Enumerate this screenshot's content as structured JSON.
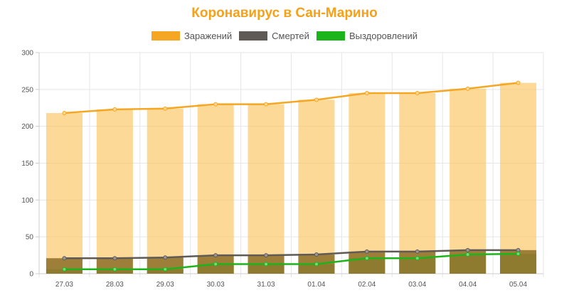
{
  "title": "Коронавирус в Сан-Марино",
  "legend": [
    {
      "label": "Заражений",
      "color": "#f5a623"
    },
    {
      "label": "Смертей",
      "color": "#5f5a55"
    },
    {
      "label": "Выздоровлений",
      "color": "#1bb51b"
    }
  ],
  "chart_data": {
    "type": "bar",
    "categories": [
      "27.03",
      "28.03",
      "29.03",
      "30.03",
      "31.03",
      "01.04",
      "02.04",
      "03.04",
      "04.04",
      "05.04"
    ],
    "series": [
      {
        "name": "Заражений",
        "values": [
          218,
          223,
          224,
          230,
          230,
          236,
          245,
          245,
          251,
          259
        ]
      },
      {
        "name": "Смертей",
        "values": [
          21,
          21,
          22,
          25,
          25,
          26,
          30,
          30,
          32,
          32
        ]
      },
      {
        "name": "Выздоровлений",
        "values": [
          6,
          6,
          6,
          13,
          13,
          13,
          21,
          21,
          26,
          27
        ]
      }
    ],
    "y_ticks": [
      "0",
      "50",
      "100",
      "150",
      "200",
      "250",
      "300"
    ],
    "ylim": [
      0,
      300
    ],
    "grid": true,
    "legend_position": "top-center"
  }
}
